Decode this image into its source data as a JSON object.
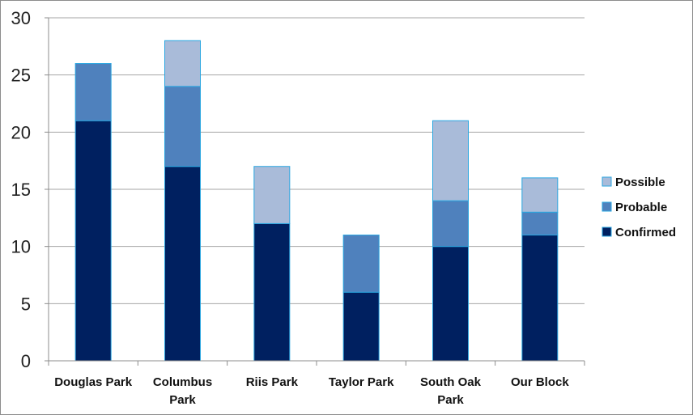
{
  "chart_data": {
    "type": "bar",
    "stacked": true,
    "categories": [
      "Douglas Park",
      "Columbus Park",
      "Riis Park",
      "Taylor Park",
      "South Oak Park",
      "Our Block"
    ],
    "series": [
      {
        "name": "Confirmed",
        "values": [
          21,
          17,
          12,
          6,
          10,
          11
        ],
        "color": "#002060"
      },
      {
        "name": "Probable",
        "values": [
          5,
          7,
          0,
          5,
          4,
          2
        ],
        "color": "#4f81bd"
      },
      {
        "name": "Possible",
        "values": [
          0,
          4,
          5,
          0,
          7,
          3
        ],
        "color": "#a9bbd9"
      }
    ],
    "ylim": [
      0,
      30
    ],
    "yticks": [
      0,
      5,
      10,
      15,
      20,
      25,
      30
    ],
    "grid": true,
    "legend": "right",
    "legend_order": [
      "Possible",
      "Probable",
      "Confirmed"
    ],
    "bar_outline": "#2aa6e0"
  }
}
